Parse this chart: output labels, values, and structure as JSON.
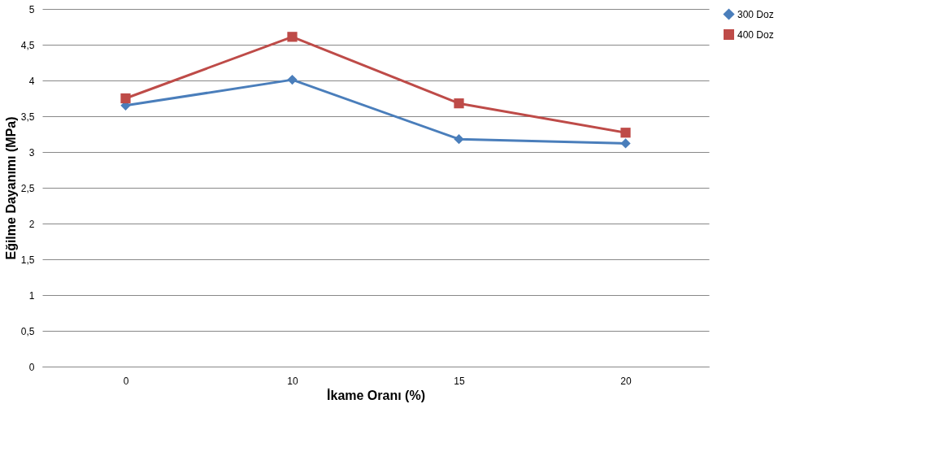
{
  "chart_data": {
    "type": "line",
    "xlabel": "İkame Oranı (%)",
    "ylabel": "Eğilme Dayanımı (MPa)",
    "categories": [
      "0",
      "10",
      "15",
      "20"
    ],
    "series": [
      {
        "name": "300 Doz",
        "color": "#4a7ebb",
        "marker": "diamond",
        "values": [
          3.65,
          4.01,
          3.18,
          3.12
        ]
      },
      {
        "name": "400 Doz",
        "color": "#be4b48",
        "marker": "square",
        "values": [
          3.75,
          4.61,
          3.68,
          3.27
        ]
      }
    ],
    "ylim": [
      0,
      5
    ],
    "yticks": [
      0,
      {
        "value": 0.5,
        "label": "0,5"
      },
      1,
      {
        "value": 1.5,
        "label": "1,5"
      },
      2,
      {
        "value": 2.5,
        "label": "2,5"
      },
      3,
      {
        "value": 3.5,
        "label": "3,5"
      },
      4,
      {
        "value": 4.5,
        "label": "4,5"
      },
      5
    ],
    "grid": "y",
    "legend": "right",
    "line_style": "solid"
  }
}
